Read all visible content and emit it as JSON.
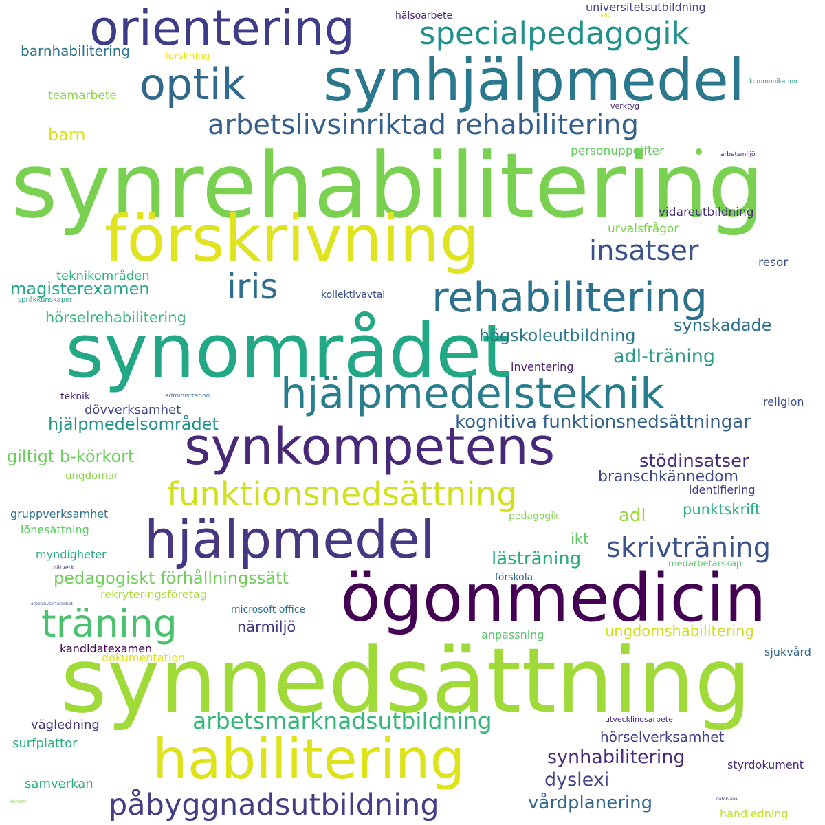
{
  "words": [
    {
      "text": "synrehabilitering",
      "color": "#7ad151"
    },
    {
      "text": "synnedsättning",
      "color": "#a0da39"
    },
    {
      "text": "synområdet",
      "color": "#22a884"
    },
    {
      "text": "ögonmedicin",
      "color": "#440154"
    },
    {
      "text": "förskrivning",
      "color": "#e0e31f"
    },
    {
      "text": "synhjälpmedel",
      "color": "#2a788e"
    },
    {
      "text": "habilitering",
      "color": "#dde318"
    },
    {
      "text": "orientering",
      "color": "#3e3c88"
    },
    {
      "text": "synkompetens",
      "color": "#482878"
    },
    {
      "text": "hjälpmedel",
      "color": "#453781"
    },
    {
      "text": "hjälpmedelsteknik",
      "color": "#287d8e"
    },
    {
      "text": "rehabilitering",
      "color": "#2c728e"
    },
    {
      "text": "optik",
      "color": "#31688e"
    },
    {
      "text": "specialpedagogik",
      "color": "#21918c"
    },
    {
      "text": "funktionsnedsättning",
      "color": "#d0e11c"
    },
    {
      "text": "arbetslivsinriktad rehabilitering",
      "color": "#35608d"
    },
    {
      "text": "träning",
      "color": "#4ac16d"
    },
    {
      "text": "påbyggnadsutbildning",
      "color": "#433e85"
    },
    {
      "text": "iris",
      "color": "#2e6e8e"
    },
    {
      "text": "insatser",
      "color": "#3b528b"
    },
    {
      "text": "arbetsmarknadsutbildning",
      "color": "#35b779"
    },
    {
      "text": "skrivträning",
      "color": "#3b528b"
    },
    {
      "text": "kognitiva funktionsnedsättningar",
      "color": "#33638d"
    },
    {
      "text": "synhabilitering",
      "color": "#472c7a"
    },
    {
      "text": "dyslexi",
      "color": "#414487"
    },
    {
      "text": "vårdplanering",
      "color": "#31688e"
    },
    {
      "text": "pedagogiskt förhållningssätt",
      "color": "#6ece58"
    },
    {
      "text": "stödinsatser",
      "color": "#46327e"
    },
    {
      "text": "adl-träning",
      "color": "#2a9c8a"
    },
    {
      "text": "högskoleutbildning",
      "color": "#2a788e"
    },
    {
      "text": "synskadade",
      "color": "#2d708e"
    },
    {
      "text": "magisterexamen",
      "color": "#22a884"
    },
    {
      "text": "hjälpmedelsområdet",
      "color": "#20928c"
    },
    {
      "text": "giltigt b-körkort",
      "color": "#6ccd5a"
    },
    {
      "text": "branschkännedom",
      "color": "#3e4c8a"
    },
    {
      "text": "lästräning",
      "color": "#27ad81"
    },
    {
      "text": "punktskrift",
      "color": "#2ab07f"
    },
    {
      "text": "adl",
      "color": "#9dd93b"
    },
    {
      "text": "ikt",
      "color": "#5ec962"
    },
    {
      "text": "hörselrehabilitering",
      "color": "#35b779"
    },
    {
      "text": "närmiljö",
      "color": "#453781"
    },
    {
      "text": "ungdomshabilitering",
      "color": "#cde11d"
    },
    {
      "text": "hörselverksamhet",
      "color": "#414487"
    },
    {
      "text": "barnhabilitering",
      "color": "#2c728e"
    },
    {
      "text": "barn",
      "color": "#d8e219"
    },
    {
      "text": "teknikområden",
      "color": "#2db27d"
    },
    {
      "text": "dövverksamhet",
      "color": "#404688"
    },
    {
      "text": "vägledning",
      "color": "#46337e"
    },
    {
      "text": "surfplattor",
      "color": "#29af7f"
    },
    {
      "text": "samverkan",
      "color": "#2ab07f"
    },
    {
      "text": "teamarbete",
      "color": "#8ed645"
    },
    {
      "text": "personuppgifter",
      "color": "#63cb5f"
    },
    {
      "text": "vidareutbildning",
      "color": "#46327e"
    },
    {
      "text": "urvalsfrågor",
      "color": "#7ad151"
    },
    {
      "text": "resor",
      "color": "#3d4e8a"
    },
    {
      "text": "kollektivavtal",
      "color": "#3b528b"
    },
    {
      "text": "inventering",
      "color": "#482475"
    },
    {
      "text": "religion",
      "color": "#3e4c8a"
    },
    {
      "text": "identifiering",
      "color": "#443b84"
    },
    {
      "text": "gruppverksamhet",
      "color": "#2c728e"
    },
    {
      "text": "lönesättning",
      "color": "#5ec962"
    },
    {
      "text": "myndigheter",
      "color": "#27ad81"
    },
    {
      "text": "rekryteringsföretag",
      "color": "#a8db34"
    },
    {
      "text": "microsoft office",
      "color": "#2d708e"
    },
    {
      "text": "kandidatexamen",
      "color": "#440154"
    },
    {
      "text": "dokumentation",
      "color": "#dde318"
    },
    {
      "text": "anpassning",
      "color": "#54c568"
    },
    {
      "text": "sjukvård",
      "color": "#31688e"
    },
    {
      "text": "styrdokument",
      "color": "#472d7b"
    },
    {
      "text": "handledning",
      "color": "#c2df23"
    },
    {
      "text": "universitetsutbildning",
      "color": "#414487"
    },
    {
      "text": "hälsoarbete",
      "color": "#482878"
    },
    {
      "text": "forskning",
      "color": "#e5e419"
    },
    {
      "text": "verktyg",
      "color": "#472c7a"
    },
    {
      "text": "teknik",
      "color": "#472c7a"
    },
    {
      "text": "ungdomar",
      "color": "#8bd646"
    },
    {
      "text": "pedagogik",
      "color": "#7fd34e"
    },
    {
      "text": "förskola",
      "color": "#31688e"
    },
    {
      "text": "medarbetarskap",
      "color": "#52c569"
    },
    {
      "text": "utvecklingsarbete",
      "color": "#482878"
    },
    {
      "text": "kommunikation",
      "color": "#2a9c8a"
    },
    {
      "text": "arbetsmiljö",
      "color": "#482173"
    },
    {
      "text": "språkkunskaper",
      "color": "#2a9c8a"
    },
    {
      "text": "administration",
      "color": "#3e74a6"
    },
    {
      "text": "nätverk",
      "color": "#433e85"
    },
    {
      "text": "arbetslivserfarenhet",
      "color": "#3b528b"
    },
    {
      "text": "körkort",
      "color": "#8ed645"
    },
    {
      "text": "datorvana",
      "color": "#404688"
    },
    {
      "text": "miljö",
      "color": "#d8e219"
    }
  ]
}
